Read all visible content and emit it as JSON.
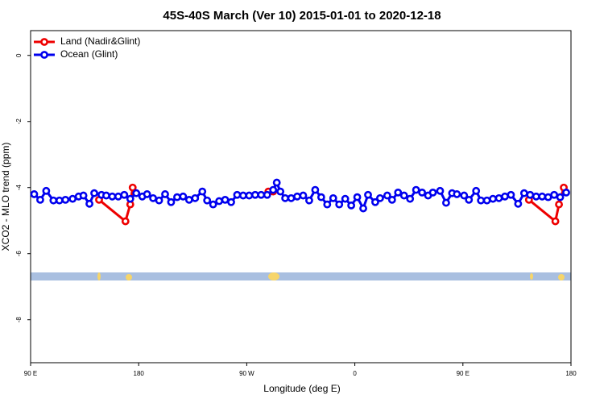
{
  "chart_data": {
    "type": "line",
    "title": "45S-40S March (Ver 10)   2015-01-01 to 2020-12-18",
    "x_label": "Longitude (deg E)",
    "y_label": "XCO2 - MLO trend (ppm)",
    "xlim": [
      90,
      540
    ],
    "xticks": [
      {
        "value": 90,
        "label": "90 E"
      },
      {
        "value": 180,
        "label": "180"
      },
      {
        "value": 270,
        "label": "90 W"
      },
      {
        "value": 360,
        "label": "0"
      },
      {
        "value": 450,
        "label": "90 E"
      },
      {
        "value": 540,
        "label": "180"
      }
    ],
    "ylim": [
      -9.3,
      0.75
    ],
    "yticks": [
      -8,
      -6,
      -4,
      -2,
      0
    ],
    "legend": "top-left",
    "series": [
      {
        "name": "Land (Nadir&Glint)",
        "color": "#ee0000",
        "x": [
          147,
          169,
          173,
          175,
          null,
          288,
          292,
          null,
          505,
          527,
          530,
          534
        ],
        "values": [
          -4.37,
          -5.02,
          -4.51,
          -4.0,
          null,
          -4.12,
          -4.12,
          null,
          -4.37,
          -5.02,
          -4.51,
          -4.0
        ]
      },
      {
        "name": "Ocean (Glint)",
        "color": "#0000ee",
        "x": [
          93,
          98,
          103,
          109,
          114,
          119,
          125,
          130,
          134,
          139,
          143,
          149,
          153,
          158,
          163,
          168,
          173,
          178,
          183,
          187,
          192,
          197,
          202,
          207,
          212,
          217,
          222,
          227,
          233,
          237,
          242,
          247,
          252,
          257,
          262,
          267,
          272,
          277,
          282,
          287,
          292,
          295,
          298,
          302,
          307,
          312,
          317,
          322,
          327,
          332,
          337,
          342,
          347,
          352,
          357,
          362,
          367,
          371,
          377,
          381,
          387,
          391,
          396,
          401,
          406,
          411,
          416,
          421,
          425,
          431,
          436,
          441,
          445,
          451,
          455,
          461,
          465,
          470,
          475,
          480,
          485,
          490,
          496,
          501,
          506,
          511,
          516,
          521,
          526,
          531,
          536
        ],
        "values": [
          -4.2,
          -4.37,
          -4.1,
          -4.39,
          -4.39,
          -4.37,
          -4.34,
          -4.27,
          -4.24,
          -4.49,
          -4.17,
          -4.22,
          -4.24,
          -4.27,
          -4.27,
          -4.22,
          -4.34,
          -4.17,
          -4.27,
          -4.2,
          -4.32,
          -4.39,
          -4.2,
          -4.44,
          -4.29,
          -4.27,
          -4.37,
          -4.32,
          -4.12,
          -4.39,
          -4.51,
          -4.41,
          -4.37,
          -4.44,
          -4.22,
          -4.24,
          -4.24,
          -4.22,
          -4.22,
          -4.22,
          -4.07,
          -3.85,
          -4.12,
          -4.32,
          -4.32,
          -4.27,
          -4.24,
          -4.39,
          -4.07,
          -4.29,
          -4.51,
          -4.32,
          -4.51,
          -4.34,
          -4.54,
          -4.29,
          -4.63,
          -4.22,
          -4.44,
          -4.32,
          -4.24,
          -4.37,
          -4.15,
          -4.24,
          -4.34,
          -4.07,
          -4.15,
          -4.24,
          -4.15,
          -4.1,
          -4.46,
          -4.17,
          -4.2,
          -4.24,
          -4.37,
          -4.1,
          -4.39,
          -4.39,
          -4.34,
          -4.32,
          -4.27,
          -4.22,
          -4.49,
          -4.17,
          -4.22,
          -4.27,
          -4.27,
          -4.29,
          -4.22,
          -4.29,
          -4.15
        ]
      }
    ]
  }
}
